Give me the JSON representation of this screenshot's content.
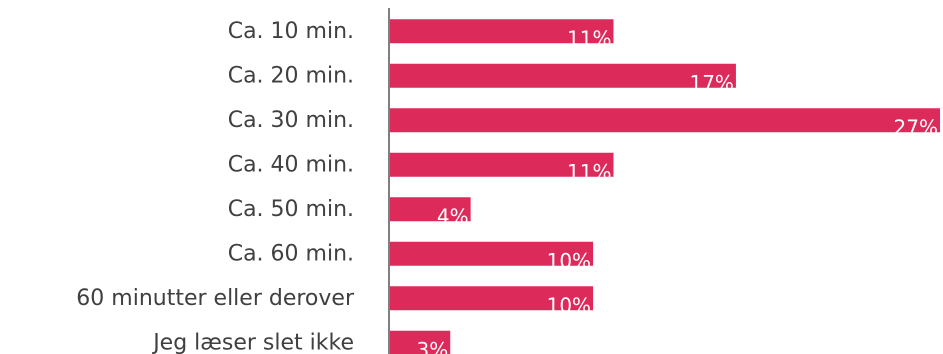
{
  "chart_data": {
    "type": "bar",
    "orientation": "horizontal",
    "categories": [
      "Ca. 10 min.",
      "Ca. 20 min.",
      "Ca. 30 min.",
      "Ca. 40 min.",
      "Ca. 50 min.",
      "Ca. 60 min.",
      "60 minutter eller derover",
      "Jeg læser slet ikke"
    ],
    "values": [
      11,
      17,
      27,
      11,
      4,
      10,
      10,
      3
    ],
    "value_labels": [
      "11%",
      "17%",
      "27%",
      "11%",
      "4%",
      "10%",
      "10%",
      "3%"
    ],
    "unit": "%",
    "xlim": [
      0,
      27
    ],
    "grid": false,
    "legend": "none",
    "bar_color": "#dc2a5b",
    "axis_color": "#7f7f7f",
    "label_color": "#404040",
    "value_label_color": "#ffffff"
  }
}
